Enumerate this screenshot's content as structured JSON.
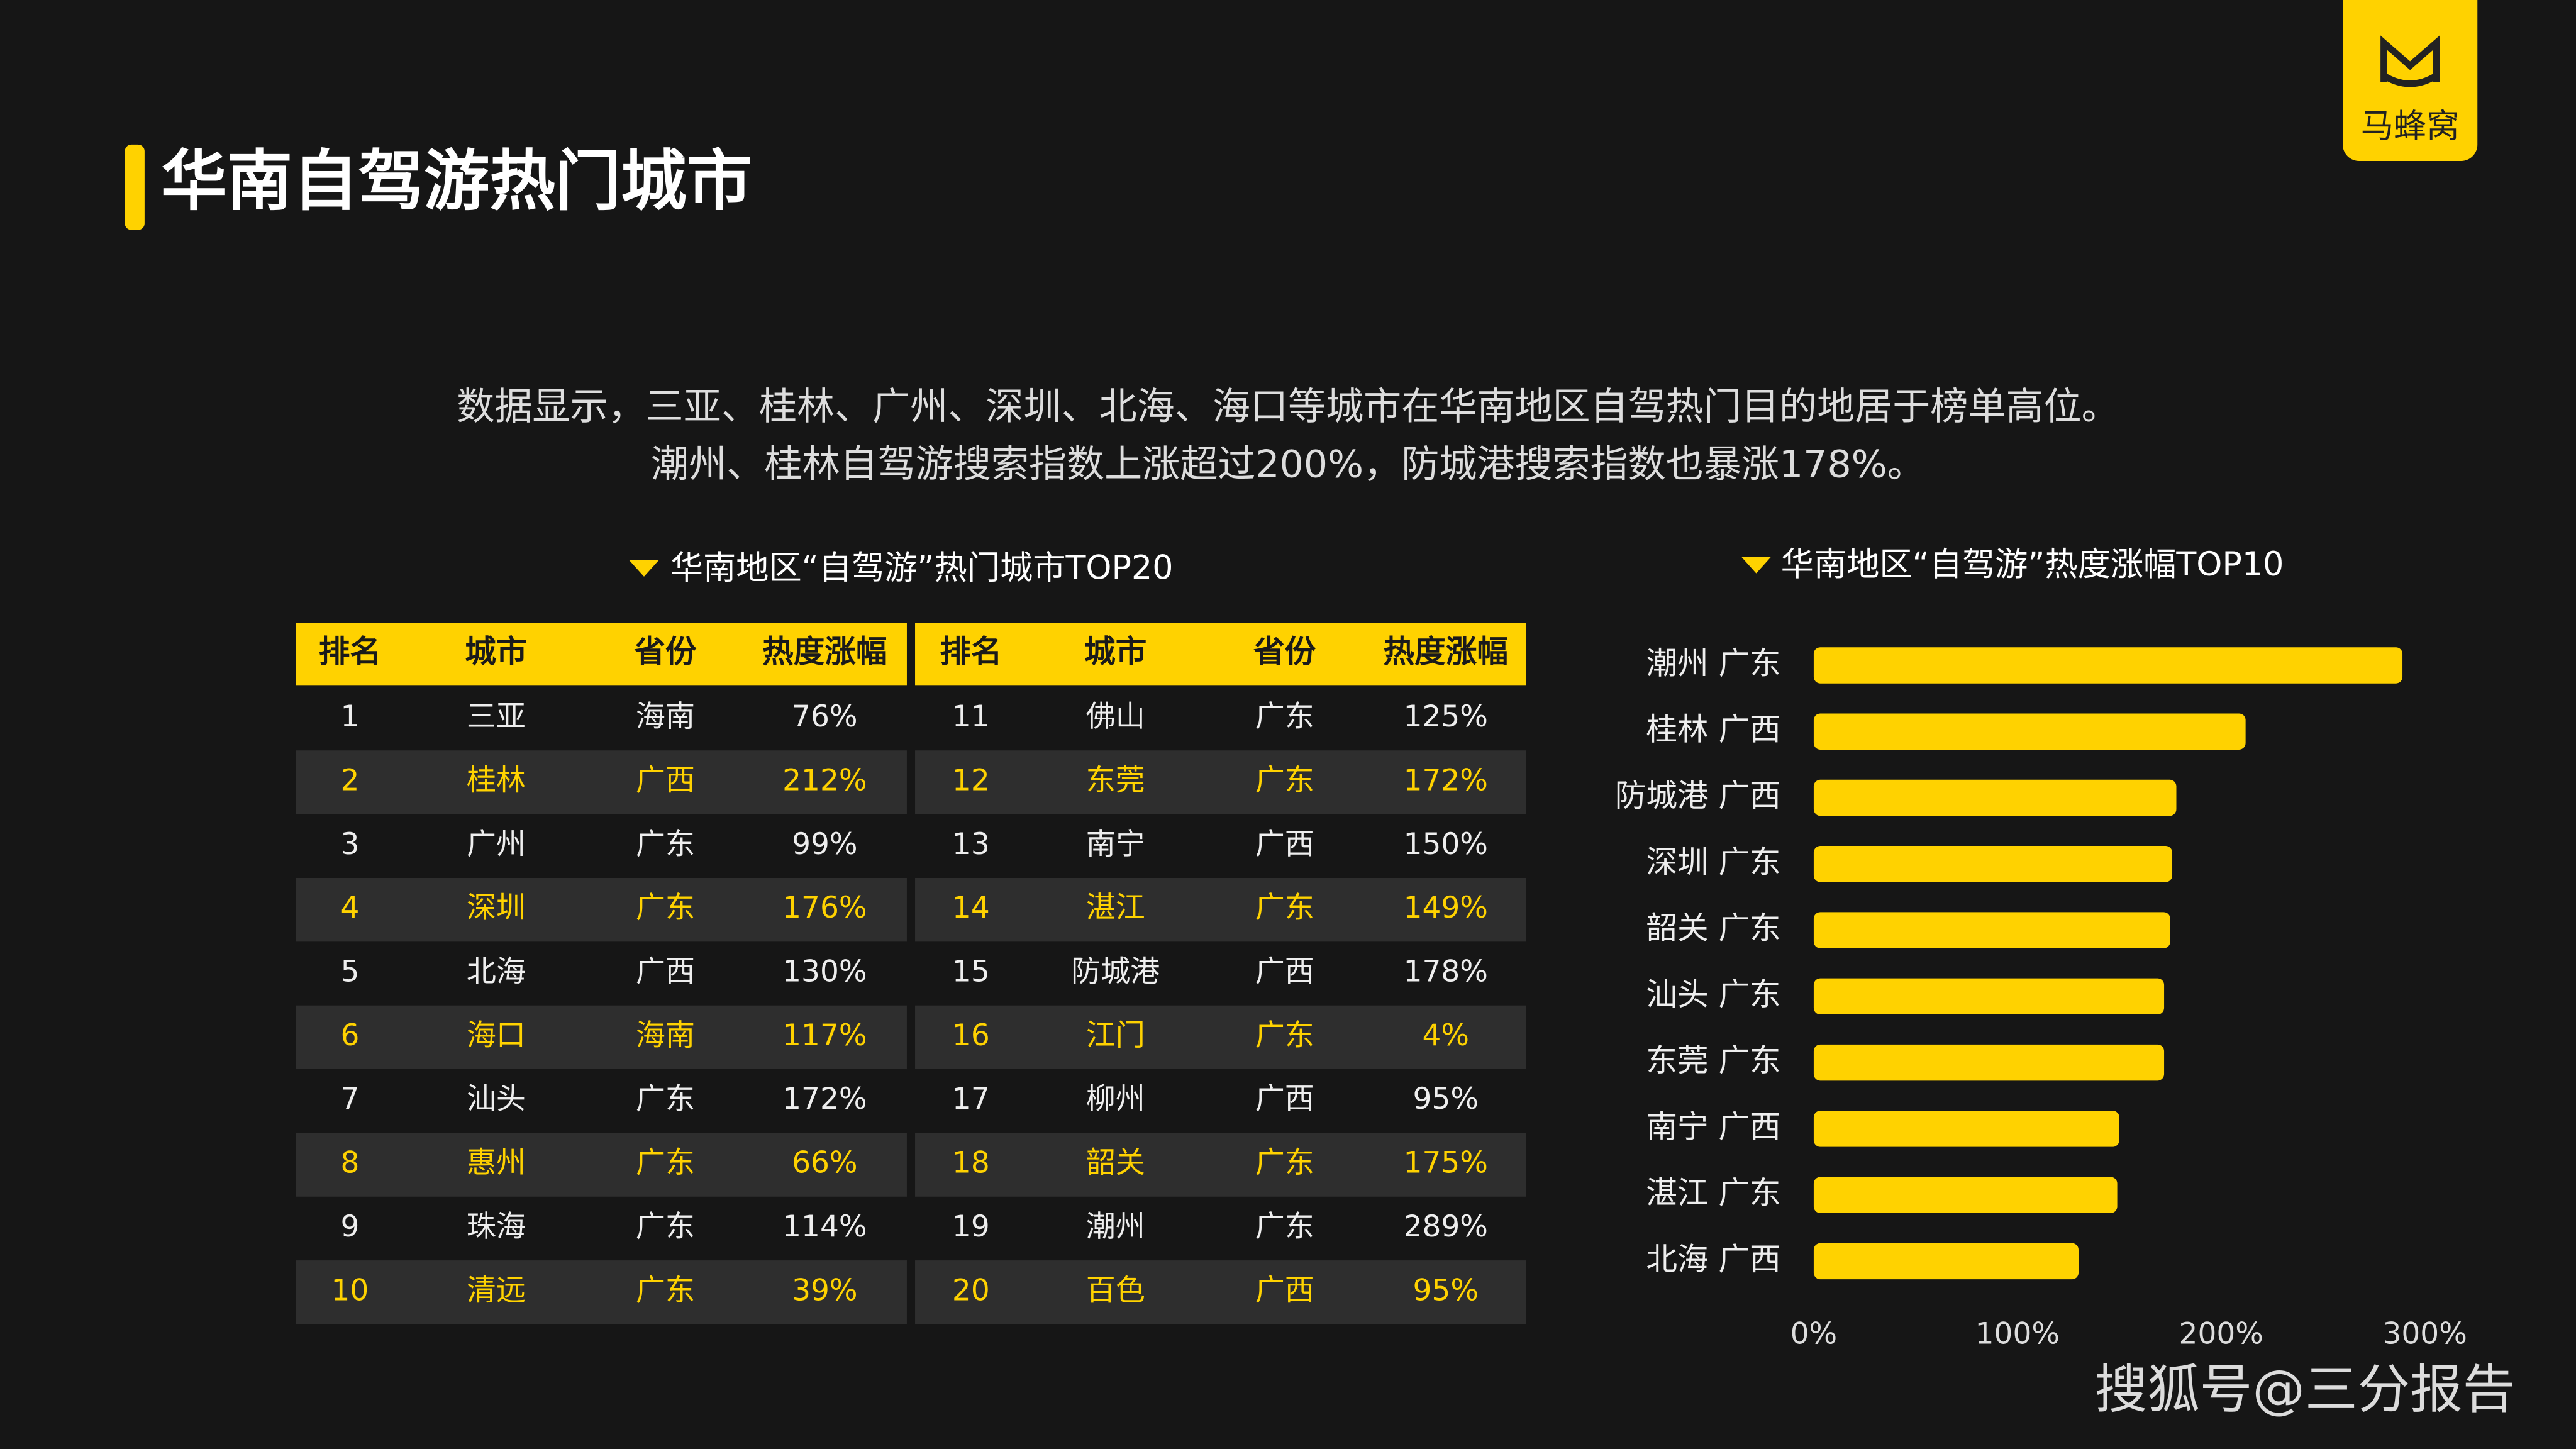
{
  "header": {
    "title": "华南自驾游热门城市",
    "logo": "马蜂窝"
  },
  "description": [
    "数据显示，三亚、桂林、广州、深圳、北海、海口等城市在华南地区自驾热门目的地居于榜单高位。",
    "潮州、桂林自驾游搜索指数上涨超过200%，防城港搜索指数也暴涨178%。"
  ],
  "table": {
    "title": "华南地区“自驾游”热门城市TOP20",
    "headers": [
      "排名",
      "城市",
      "省份",
      "热度涨幅"
    ],
    "rows": [
      [
        1,
        "三亚",
        "海南",
        "76%"
      ],
      [
        2,
        "桂林",
        "广西",
        "212%"
      ],
      [
        3,
        "广州",
        "广东",
        "99%"
      ],
      [
        4,
        "深圳",
        "广东",
        "176%"
      ],
      [
        5,
        "北海",
        "广西",
        "130%"
      ],
      [
        6,
        "海口",
        "海南",
        "117%"
      ],
      [
        7,
        "汕头",
        "广东",
        "172%"
      ],
      [
        8,
        "惠州",
        "广东",
        "66%"
      ],
      [
        9,
        "珠海",
        "广东",
        "114%"
      ],
      [
        10,
        "清远",
        "广东",
        "39%"
      ],
      [
        11,
        "佛山",
        "广东",
        "125%"
      ],
      [
        12,
        "东莞",
        "广东",
        "172%"
      ],
      [
        13,
        "南宁",
        "广西",
        "150%"
      ],
      [
        14,
        "湛江",
        "广东",
        "149%"
      ],
      [
        15,
        "防城港",
        "广西",
        "178%"
      ],
      [
        16,
        "江门",
        "广东",
        "4%"
      ],
      [
        17,
        "柳州",
        "广西",
        "95%"
      ],
      [
        18,
        "韶关",
        "广东",
        "175%"
      ],
      [
        19,
        "潮州",
        "广东",
        "289%"
      ],
      [
        20,
        "百色",
        "广西",
        "95%"
      ]
    ]
  },
  "chart_data": {
    "type": "hbar",
    "title": "华南地区“自驾游”热度涨幅TOP10",
    "categories": [
      "潮州 广东",
      "桂林 广西",
      "防城港 广西",
      "深圳 广东",
      "韶关 广东",
      "汕头 广东",
      "东莞 广东",
      "南宁 广西",
      "湛江 广东",
      "北海 广西"
    ],
    "values": [
      289,
      212,
      178,
      176,
      175,
      172,
      172,
      150,
      149,
      130
    ],
    "color": "#ffd200",
    "xlim": [
      0,
      300
    ],
    "xticks": [
      {
        "value": 0,
        "label": "0%"
      },
      {
        "value": 100,
        "label": "100%"
      },
      {
        "value": 200,
        "label": "200%"
      },
      {
        "value": 300,
        "label": "300%"
      }
    ],
    "grid": false
  },
  "footer": {
    "source": "搜狐号@三分报告"
  }
}
